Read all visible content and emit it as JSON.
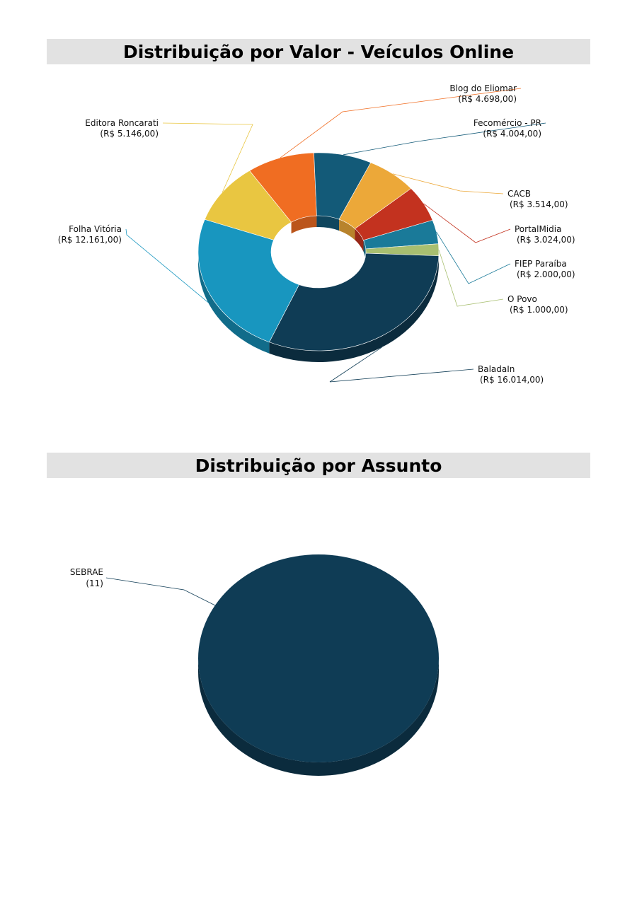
{
  "chart_data": [
    {
      "type": "pie",
      "style": "3d-donut",
      "title": "Distribuição por Valor - Veículos Online",
      "slices": [
        {
          "name": "Blog do Eliomar",
          "value": 4698.0,
          "value_label": "(R$ 4.698,00)",
          "color": "#f06d22"
        },
        {
          "name": "Fecomércio - PR",
          "value": 4004.0,
          "value_label": "(R$ 4.004,00)",
          "color": "#135a78"
        },
        {
          "name": "CACB",
          "value": 3514.0,
          "value_label": "(R$ 3.514,00)",
          "color": "#eca839"
        },
        {
          "name": "PortalMidia",
          "value": 3024.0,
          "value_label": "(R$ 3.024,00)",
          "color": "#c3321f"
        },
        {
          "name": "FIEP Paraíba",
          "value": 2000.0,
          "value_label": "(R$ 2.000,00)",
          "color": "#1a7a99"
        },
        {
          "name": "O Povo",
          "value": 1000.0,
          "value_label": "(R$ 1.000,00)",
          "color": "#a8bf70"
        },
        {
          "name": "BaladaIn",
          "value": 16014.0,
          "value_label": "(R$ 16.014,00)",
          "color": "#0f3c55"
        },
        {
          "name": "Folha Vitória",
          "value": 12161.0,
          "value_label": "(R$ 12.161,00)",
          "color": "#1896bf"
        },
        {
          "name": "Editora Roncarati",
          "value": 5146.0,
          "value_label": "(R$ 5.146,00)",
          "color": "#e9c641"
        }
      ]
    },
    {
      "type": "pie",
      "style": "3d",
      "title": "Distribuição por Assunto",
      "slices": [
        {
          "name": "SEBRAE",
          "value": 11,
          "value_label": "(11)",
          "color": "#0f3c55"
        }
      ]
    }
  ]
}
